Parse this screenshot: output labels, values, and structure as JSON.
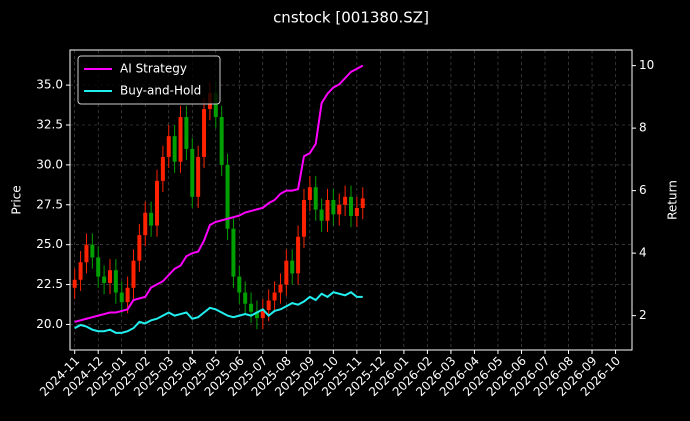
{
  "chart_data": {
    "type": "candlestick",
    "title": "cnstock [001380.SZ]",
    "ylabel": "Price",
    "y2label": "Return",
    "up_color": "#ff2200",
    "down_color": "#00a000",
    "x": [
      0,
      0.25,
      0.5,
      0.75,
      1,
      1.25,
      1.5,
      1.75,
      2,
      2.25,
      2.5,
      2.75,
      3,
      3.25,
      3.5,
      3.75,
      4,
      4.25,
      4.5,
      4.75,
      5,
      5.25,
      5.5,
      5.75,
      6,
      6.25,
      6.5,
      6.75,
      7,
      7.25,
      7.5,
      7.75,
      8,
      8.25,
      8.5,
      8.75,
      9,
      9.25,
      9.5,
      9.75,
      10,
      10.25,
      10.5,
      10.75,
      11,
      11.25,
      11.5,
      11.75,
      12,
      12.25
    ],
    "open": [
      22.3,
      22.8,
      23.9,
      25.0,
      24.2,
      23.0,
      22.6,
      23.4,
      22.0,
      21.4,
      22.3,
      24.0,
      25.6,
      27.0,
      26.2,
      29.0,
      30.5,
      31.8,
      30.2,
      33.0,
      31.0,
      28.0,
      30.5,
      33.5,
      34.5,
      33.0,
      30.0,
      26.0,
      23.0,
      22.0,
      21.3,
      20.8,
      20.4,
      20.9,
      21.5,
      22.0,
      22.5,
      24.0,
      23.2,
      25.5,
      27.8,
      28.6,
      27.2,
      26.5,
      27.8,
      26.9,
      27.5,
      28.0,
      26.8,
      27.3
    ],
    "high": [
      23.5,
      24.6,
      25.7,
      25.7,
      24.9,
      23.7,
      24.1,
      24.1,
      22.7,
      23.0,
      24.7,
      26.3,
      27.7,
      27.7,
      29.7,
      31.2,
      32.5,
      32.5,
      33.7,
      33.7,
      31.7,
      31.2,
      34.2,
      35.2,
      35.2,
      33.7,
      30.7,
      26.7,
      23.7,
      22.7,
      22.0,
      21.5,
      21.6,
      22.2,
      22.7,
      23.2,
      24.7,
      24.7,
      26.2,
      28.5,
      29.3,
      29.3,
      27.9,
      28.5,
      28.5,
      28.2,
      28.7,
      28.7,
      28.0,
      28.6
    ],
    "low": [
      21.6,
      22.1,
      23.2,
      23.5,
      22.3,
      21.9,
      21.9,
      21.3,
      20.7,
      20.7,
      21.6,
      23.3,
      24.9,
      25.5,
      25.5,
      28.3,
      29.8,
      29.5,
      29.5,
      30.3,
      27.3,
      27.3,
      29.8,
      32.8,
      32.3,
      29.3,
      25.3,
      22.3,
      21.3,
      20.6,
      20.1,
      19.7,
      19.7,
      20.2,
      20.8,
      21.3,
      21.8,
      22.5,
      22.5,
      24.8,
      27.1,
      26.5,
      25.8,
      25.8,
      26.2,
      26.2,
      26.8,
      26.1,
      26.1,
      26.6
    ],
    "close": [
      22.8,
      23.9,
      25.0,
      24.2,
      23.0,
      22.6,
      23.4,
      22.0,
      21.4,
      22.3,
      24.0,
      25.6,
      27.0,
      26.2,
      29.0,
      30.5,
      31.8,
      30.2,
      33.0,
      31.0,
      28.0,
      30.5,
      33.5,
      34.5,
      33.0,
      30.0,
      26.0,
      23.0,
      22.0,
      21.3,
      20.8,
      20.4,
      20.9,
      21.5,
      22.0,
      22.5,
      24.0,
      23.2,
      25.5,
      27.8,
      28.6,
      27.2,
      26.5,
      27.8,
      26.9,
      27.5,
      28.0,
      26.8,
      27.3,
      27.9
    ],
    "series": [
      {
        "name": "AI Strategy",
        "color": "#ff00ff",
        "axis": "y2",
        "values": [
          1.8,
          1.85,
          1.9,
          1.95,
          2.0,
          2.05,
          2.1,
          2.1,
          2.15,
          2.2,
          2.5,
          2.55,
          2.6,
          2.9,
          3.0,
          3.1,
          3.3,
          3.5,
          3.6,
          3.9,
          4.0,
          4.05,
          4.4,
          4.9,
          5.0,
          5.05,
          5.1,
          5.15,
          5.2,
          5.3,
          5.35,
          5.4,
          5.45,
          5.6,
          5.7,
          5.9,
          6.0,
          6.0,
          6.05,
          7.1,
          7.2,
          7.5,
          8.8,
          9.1,
          9.3,
          9.4,
          9.6,
          9.8,
          9.9,
          10.0
        ]
      },
      {
        "name": "Buy-and-Hold",
        "color": "#22eeee",
        "axis": "y2",
        "values": [
          1.6,
          1.7,
          1.65,
          1.55,
          1.5,
          1.5,
          1.55,
          1.45,
          1.45,
          1.5,
          1.6,
          1.8,
          1.75,
          1.85,
          1.9,
          2.0,
          2.1,
          2.0,
          2.05,
          2.1,
          1.9,
          1.95,
          2.1,
          2.25,
          2.2,
          2.1,
          2.0,
          1.95,
          2.0,
          2.05,
          2.0,
          2.1,
          2.2,
          2.0,
          2.15,
          2.2,
          2.3,
          2.4,
          2.35,
          2.45,
          2.6,
          2.5,
          2.7,
          2.6,
          2.75,
          2.7,
          2.65,
          2.75,
          2.6,
          2.6
        ]
      }
    ],
    "xlim": [
      -0.2,
      23.7
    ],
    "xticks": [
      {
        "value": 0,
        "label": "2024-11"
      },
      {
        "value": 1,
        "label": "2024-12"
      },
      {
        "value": 2,
        "label": "2025-01"
      },
      {
        "value": 3,
        "label": "2025-02"
      },
      {
        "value": 4,
        "label": "2025-03"
      },
      {
        "value": 5,
        "label": "2025-04"
      },
      {
        "value": 6,
        "label": "2025-05"
      },
      {
        "value": 7,
        "label": "2025-06"
      },
      {
        "value": 8,
        "label": "2025-07"
      },
      {
        "value": 9,
        "label": "2025-08"
      },
      {
        "value": 10,
        "label": "2025-09"
      },
      {
        "value": 11,
        "label": "2025-10"
      },
      {
        "value": 12,
        "label": "2025-11"
      },
      {
        "value": 13,
        "label": "2025-12"
      },
      {
        "value": 14,
        "label": "2026-01"
      },
      {
        "value": 15,
        "label": "2026-02"
      },
      {
        "value": 16,
        "label": "2026-03"
      },
      {
        "value": 17,
        "label": "2026-04"
      },
      {
        "value": 18,
        "label": "2026-05"
      },
      {
        "value": 19,
        "label": "2026-06"
      },
      {
        "value": 20,
        "label": "2026-07"
      },
      {
        "value": 21,
        "label": "2026-08"
      },
      {
        "value": 22,
        "label": "2026-09"
      },
      {
        "value": 23,
        "label": "2026-10"
      }
    ],
    "ylim": [
      18.4,
      37.2
    ],
    "yticks": [
      {
        "value": 20,
        "label": "20.0"
      },
      {
        "value": 22.5,
        "label": "22.5"
      },
      {
        "value": 25,
        "label": "25.0"
      },
      {
        "value": 27.5,
        "label": "27.5"
      },
      {
        "value": 30,
        "label": "30.0"
      },
      {
        "value": 32.5,
        "label": "32.5"
      },
      {
        "value": 35,
        "label": "35.0"
      }
    ],
    "y2lim": [
      0.9,
      10.5
    ],
    "y2ticks": [
      2,
      4,
      6,
      8,
      10
    ],
    "grid": true,
    "legend": "upper left"
  }
}
